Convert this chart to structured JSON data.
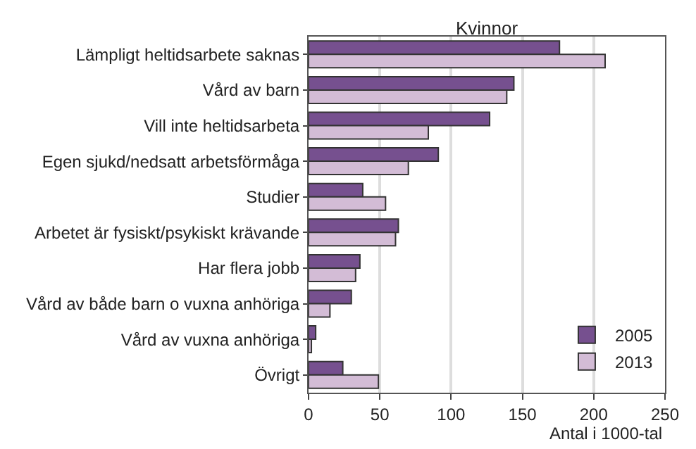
{
  "chart_data": {
    "type": "bar",
    "orientation": "horizontal",
    "title": "Kvinnor",
    "xlabel": "Antal i 1000-tal",
    "categories": [
      "Lämpligt heltidsarbete saknas",
      "Vård av barn",
      "Vill inte heltidsarbeta",
      "Egen sjukd/nedsatt arbetsförmåga",
      "Studier",
      "Arbetet är fysiskt/psykiskt krävande",
      "Har flera jobb",
      "Vård av både barn o vuxna anhöriga",
      "Vård av vuxna anhöriga",
      "Övrigt"
    ],
    "series": [
      {
        "name": "2005",
        "color": "#76508f",
        "values": [
          176,
          144,
          127,
          91,
          38,
          63,
          36,
          30,
          5,
          24
        ]
      },
      {
        "name": "2013",
        "color": "#d3bcd6",
        "values": [
          208,
          139,
          84,
          70,
          54,
          61,
          33,
          15,
          2,
          49
        ]
      }
    ],
    "xlim": [
      0,
      250
    ],
    "xticks": [
      0,
      50,
      100,
      150,
      200,
      250
    ],
    "grid": "x",
    "legend": "bottom right"
  }
}
